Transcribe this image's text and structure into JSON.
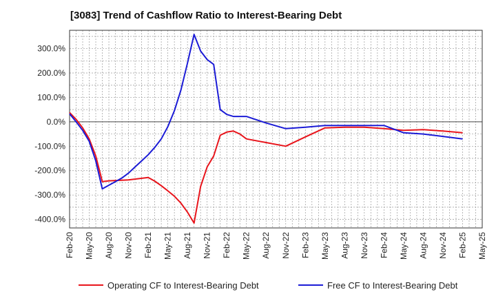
{
  "chart_data": {
    "type": "line",
    "title": "[3083]  Trend of Cashflow Ratio to Interest-Bearing Debt",
    "xlabel": "",
    "ylabel": "",
    "x_ticks": [
      "Feb-20",
      "May-20",
      "Aug-20",
      "Nov-20",
      "Feb-21",
      "May-21",
      "Aug-21",
      "Nov-21",
      "Feb-22",
      "May-22",
      "Aug-22",
      "Nov-22",
      "Feb-23",
      "May-23",
      "Aug-23",
      "Nov-23",
      "Feb-24",
      "May-24",
      "Aug-24",
      "Nov-24",
      "Feb-25",
      "May-25"
    ],
    "y_ticks": [
      "300.0%",
      "200.0%",
      "100.0%",
      "0.0%",
      "-100.0%",
      "-200.0%",
      "-300.0%",
      "-400.0%"
    ],
    "y_tick_values": [
      300,
      200,
      100,
      0,
      -100,
      -200,
      -300,
      -400
    ],
    "xlim": [
      0,
      63
    ],
    "ylim": [
      -435,
      375
    ],
    "grid": true,
    "legend_position": "bottom",
    "series": [
      {
        "name": "Operating CF to Interest-Bearing Debt",
        "color": "#e8141b",
        "x": [
          0,
          1,
          2,
          3,
          4,
          5,
          6,
          9,
          12,
          13,
          14,
          15,
          16,
          17,
          18,
          19,
          20,
          21,
          22,
          23,
          24,
          25,
          26,
          27,
          30,
          33,
          36,
          39,
          42,
          45,
          48,
          51,
          54,
          57,
          60
        ],
        "y": [
          38,
          10,
          -25,
          -70,
          -140,
          -245,
          -242,
          -238,
          -228,
          -243,
          -262,
          -283,
          -305,
          -333,
          -370,
          -415,
          -265,
          -185,
          -140,
          -55,
          -42,
          -38,
          -50,
          -70,
          -85,
          -100,
          -62,
          -25,
          -22,
          -22,
          -28,
          -35,
          -32,
          -38,
          -45
        ]
      },
      {
        "name": "Free CF to Interest-Bearing Debt",
        "color": "#1b1bd6",
        "x": [
          0,
          1,
          2,
          3,
          4,
          5,
          6,
          7,
          8,
          9,
          10,
          11,
          12,
          13,
          14,
          15,
          16,
          17,
          18,
          19,
          20,
          21,
          22,
          23,
          24,
          25,
          26,
          27,
          30,
          33,
          36,
          39,
          42,
          45,
          48,
          51,
          54,
          57,
          60
        ],
        "y": [
          33,
          0,
          -35,
          -80,
          -160,
          -275,
          -260,
          -245,
          -230,
          -210,
          -185,
          -160,
          -135,
          -105,
          -70,
          -20,
          45,
          130,
          240,
          358,
          290,
          255,
          235,
          50,
          30,
          22,
          22,
          22,
          -5,
          -28,
          -22,
          -15,
          -15,
          -15,
          -15,
          -45,
          -50,
          -60,
          -70
        ]
      }
    ]
  }
}
